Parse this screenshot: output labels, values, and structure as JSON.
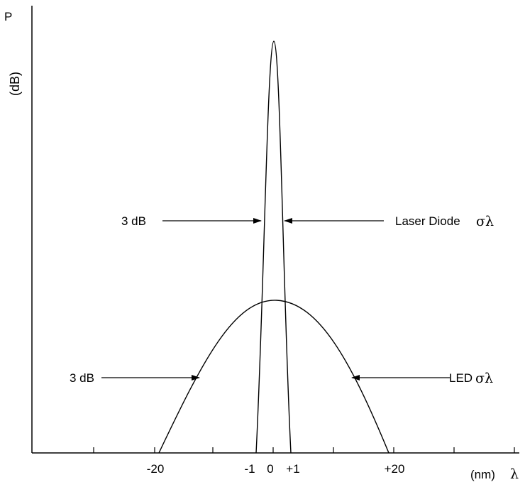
{
  "y_axis": {
    "label_p": "P",
    "label_db": "(dB)"
  },
  "x_axis": {
    "ticks": [
      "-20",
      "-1",
      "0",
      "+1",
      "+20"
    ],
    "unit": "(nm)",
    "symbol": "λ"
  },
  "curves": {
    "laser": {
      "label": "Laser Diode",
      "symbol": "σλ"
    },
    "led": {
      "label": "LED",
      "symbol": "σλ"
    }
  },
  "annotations": {
    "laser_3db": "3 dB",
    "led_3db": "3 dB"
  },
  "colors": {
    "line": "#000000",
    "background": "#ffffff"
  }
}
